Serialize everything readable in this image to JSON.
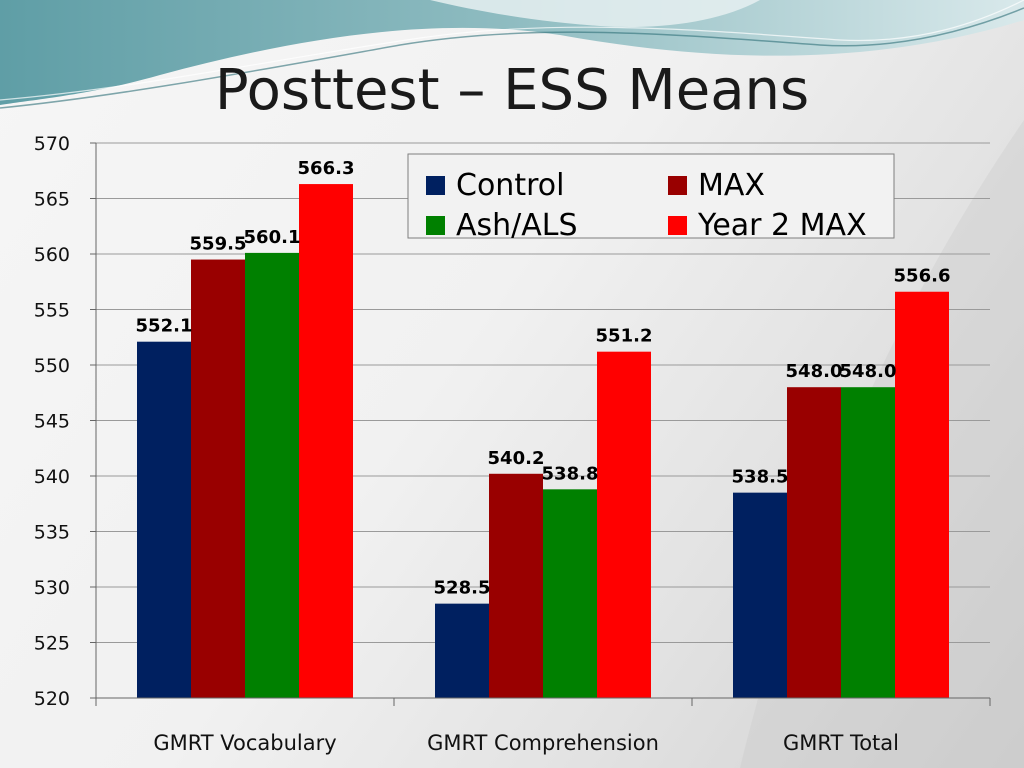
{
  "slide": {
    "title": "Posttest – ESS Means"
  },
  "chart_data": {
    "type": "bar",
    "categories": [
      "GMRT Vocabulary",
      "GMRT Comprehension",
      "GMRT Total"
    ],
    "series": [
      {
        "name": "Control",
        "color": "#002060",
        "values": [
          552.1,
          528.5,
          538.5
        ],
        "labels": [
          "552.1",
          "528.5",
          "538.5"
        ]
      },
      {
        "name": "MAX",
        "color": "#990000",
        "values": [
          559.5,
          540.2,
          548.0
        ],
        "labels": [
          "559.5",
          "540.2",
          "548.0"
        ]
      },
      {
        "name": "Ash/ALS",
        "color": "#008000",
        "values": [
          560.1,
          538.8,
          548.0
        ],
        "labels": [
          "560.1",
          "538.8",
          "548.0"
        ]
      },
      {
        "name": "Year 2 MAX",
        "color": "#ff0000",
        "values": [
          566.3,
          551.2,
          556.6
        ],
        "labels": [
          "566.3",
          "551.2",
          "556.6"
        ]
      }
    ],
    "ylim": [
      520,
      570
    ],
    "yticks": [
      520,
      525,
      530,
      535,
      540,
      545,
      550,
      555,
      560,
      565,
      570
    ],
    "grid": true,
    "legend_position": "top-right"
  }
}
